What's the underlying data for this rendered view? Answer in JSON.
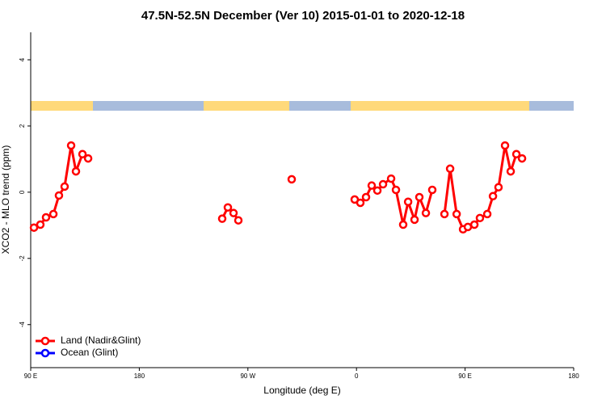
{
  "chart_data": {
    "type": "line",
    "title": "47.5N-52.5N December (Ver 10)   2015-01-01 to 2020-12-18",
    "x_label": "Longitude (deg E)",
    "y_label": "XCO2 - MLO trend (ppm)",
    "xlim": [
      90,
      540
    ],
    "ylim": [
      -5.3,
      4.83
    ],
    "xticks": [
      {
        "value": 90,
        "label": "90 E"
      },
      180,
      {
        "value": 270,
        "label": "90 W"
      },
      {
        "value": 360,
        "label": "0"
      },
      {
        "value": 450,
        "label": "90 E"
      },
      {
        "value": 540,
        "label": "180"
      }
    ],
    "yticks": [
      -4,
      -2,
      0,
      2,
      4
    ],
    "legend": "bottom-left",
    "series": [
      {
        "name": "Land (Nadir&Glint)",
        "color": "#ff0000",
        "x": [
          92.7,
          98,
          102.7,
          108.8,
          113.4,
          118.1,
          123.5,
          127.5,
          132.9,
          137.6,
          null,
          248.7,
          253.4,
          258.1,
          262.1,
          null,
          306.3,
          null,
          358.5,
          363.2,
          367.9,
          372.6,
          377.3,
          382.0,
          388.7,
          392.7,
          398.7,
          402.8,
          408.1,
          412.1,
          417.5,
          422.8,
          null,
          432.9,
          437.6,
          443.0,
          448.3,
          452.3,
          457.7,
          462.3,
          468.4,
          473.1,
          477.7,
          483.1,
          487.8,
          492.5,
          497.2
        ],
        "values": [
          -1.07,
          -0.98,
          -0.76,
          -0.66,
          -0.1,
          0.17,
          1.41,
          0.63,
          1.15,
          1.02,
          null,
          -0.8,
          -0.46,
          -0.63,
          -0.85,
          null,
          0.39,
          null,
          -0.22,
          -0.32,
          -0.15,
          0.2,
          0.05,
          0.24,
          0.41,
          0.07,
          -0.98,
          -0.29,
          -0.83,
          -0.15,
          -0.63,
          0.07,
          null,
          -0.66,
          0.71,
          -0.66,
          -1.12,
          -1.05,
          -0.98,
          -0.78,
          -0.66,
          -0.12,
          0.15,
          1.41,
          0.63,
          1.15,
          1.02
        ]
      },
      {
        "name": "Ocean (Glint)",
        "color": "#0000ff",
        "x": [],
        "values": []
      }
    ]
  }
}
